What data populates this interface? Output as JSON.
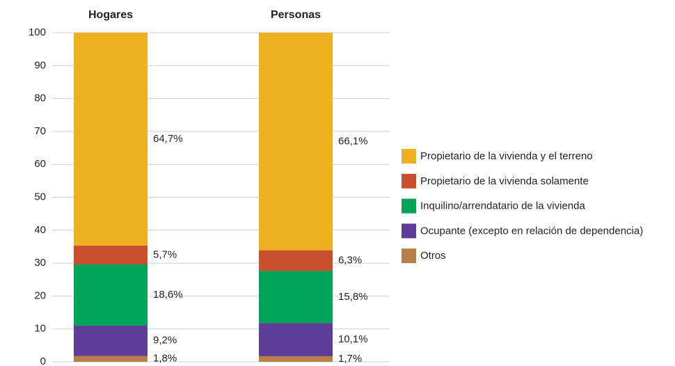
{
  "chart_data": {
    "type": "stacked_bar",
    "categories": [
      "Hogares",
      "Personas"
    ],
    "series": [
      {
        "name": "Otros",
        "color": "#b57f45",
        "values": [
          1.8,
          1.7
        ],
        "value_labels": [
          "1,8%",
          "1,7%"
        ]
      },
      {
        "name": "Ocupante (excepto en relación de dependencia)",
        "color": "#5e3d98",
        "values": [
          9.2,
          10.1
        ],
        "value_labels": [
          "9,2%",
          "10,1%"
        ]
      },
      {
        "name": "Inquilino/arrendatario de la vivienda",
        "color": "#00a55a",
        "values": [
          18.6,
          15.8
        ],
        "value_labels": [
          "18,6%",
          "15,8%"
        ]
      },
      {
        "name": "Propietario de la vivienda solamente",
        "color": "#c8502f",
        "values": [
          5.7,
          6.3
        ],
        "value_labels": [
          "5,7%",
          "6,3%"
        ]
      },
      {
        "name": "Propietario de la vivienda y el terreno",
        "color": "#ecb021",
        "values": [
          64.7,
          66.1
        ],
        "value_labels": [
          "64,7%",
          "66,1%"
        ]
      }
    ],
    "ylim": [
      0,
      100
    ],
    "yticks": [
      0,
      10,
      20,
      30,
      40,
      50,
      60,
      70,
      80,
      90,
      100
    ],
    "grid": true,
    "legend": "right"
  }
}
